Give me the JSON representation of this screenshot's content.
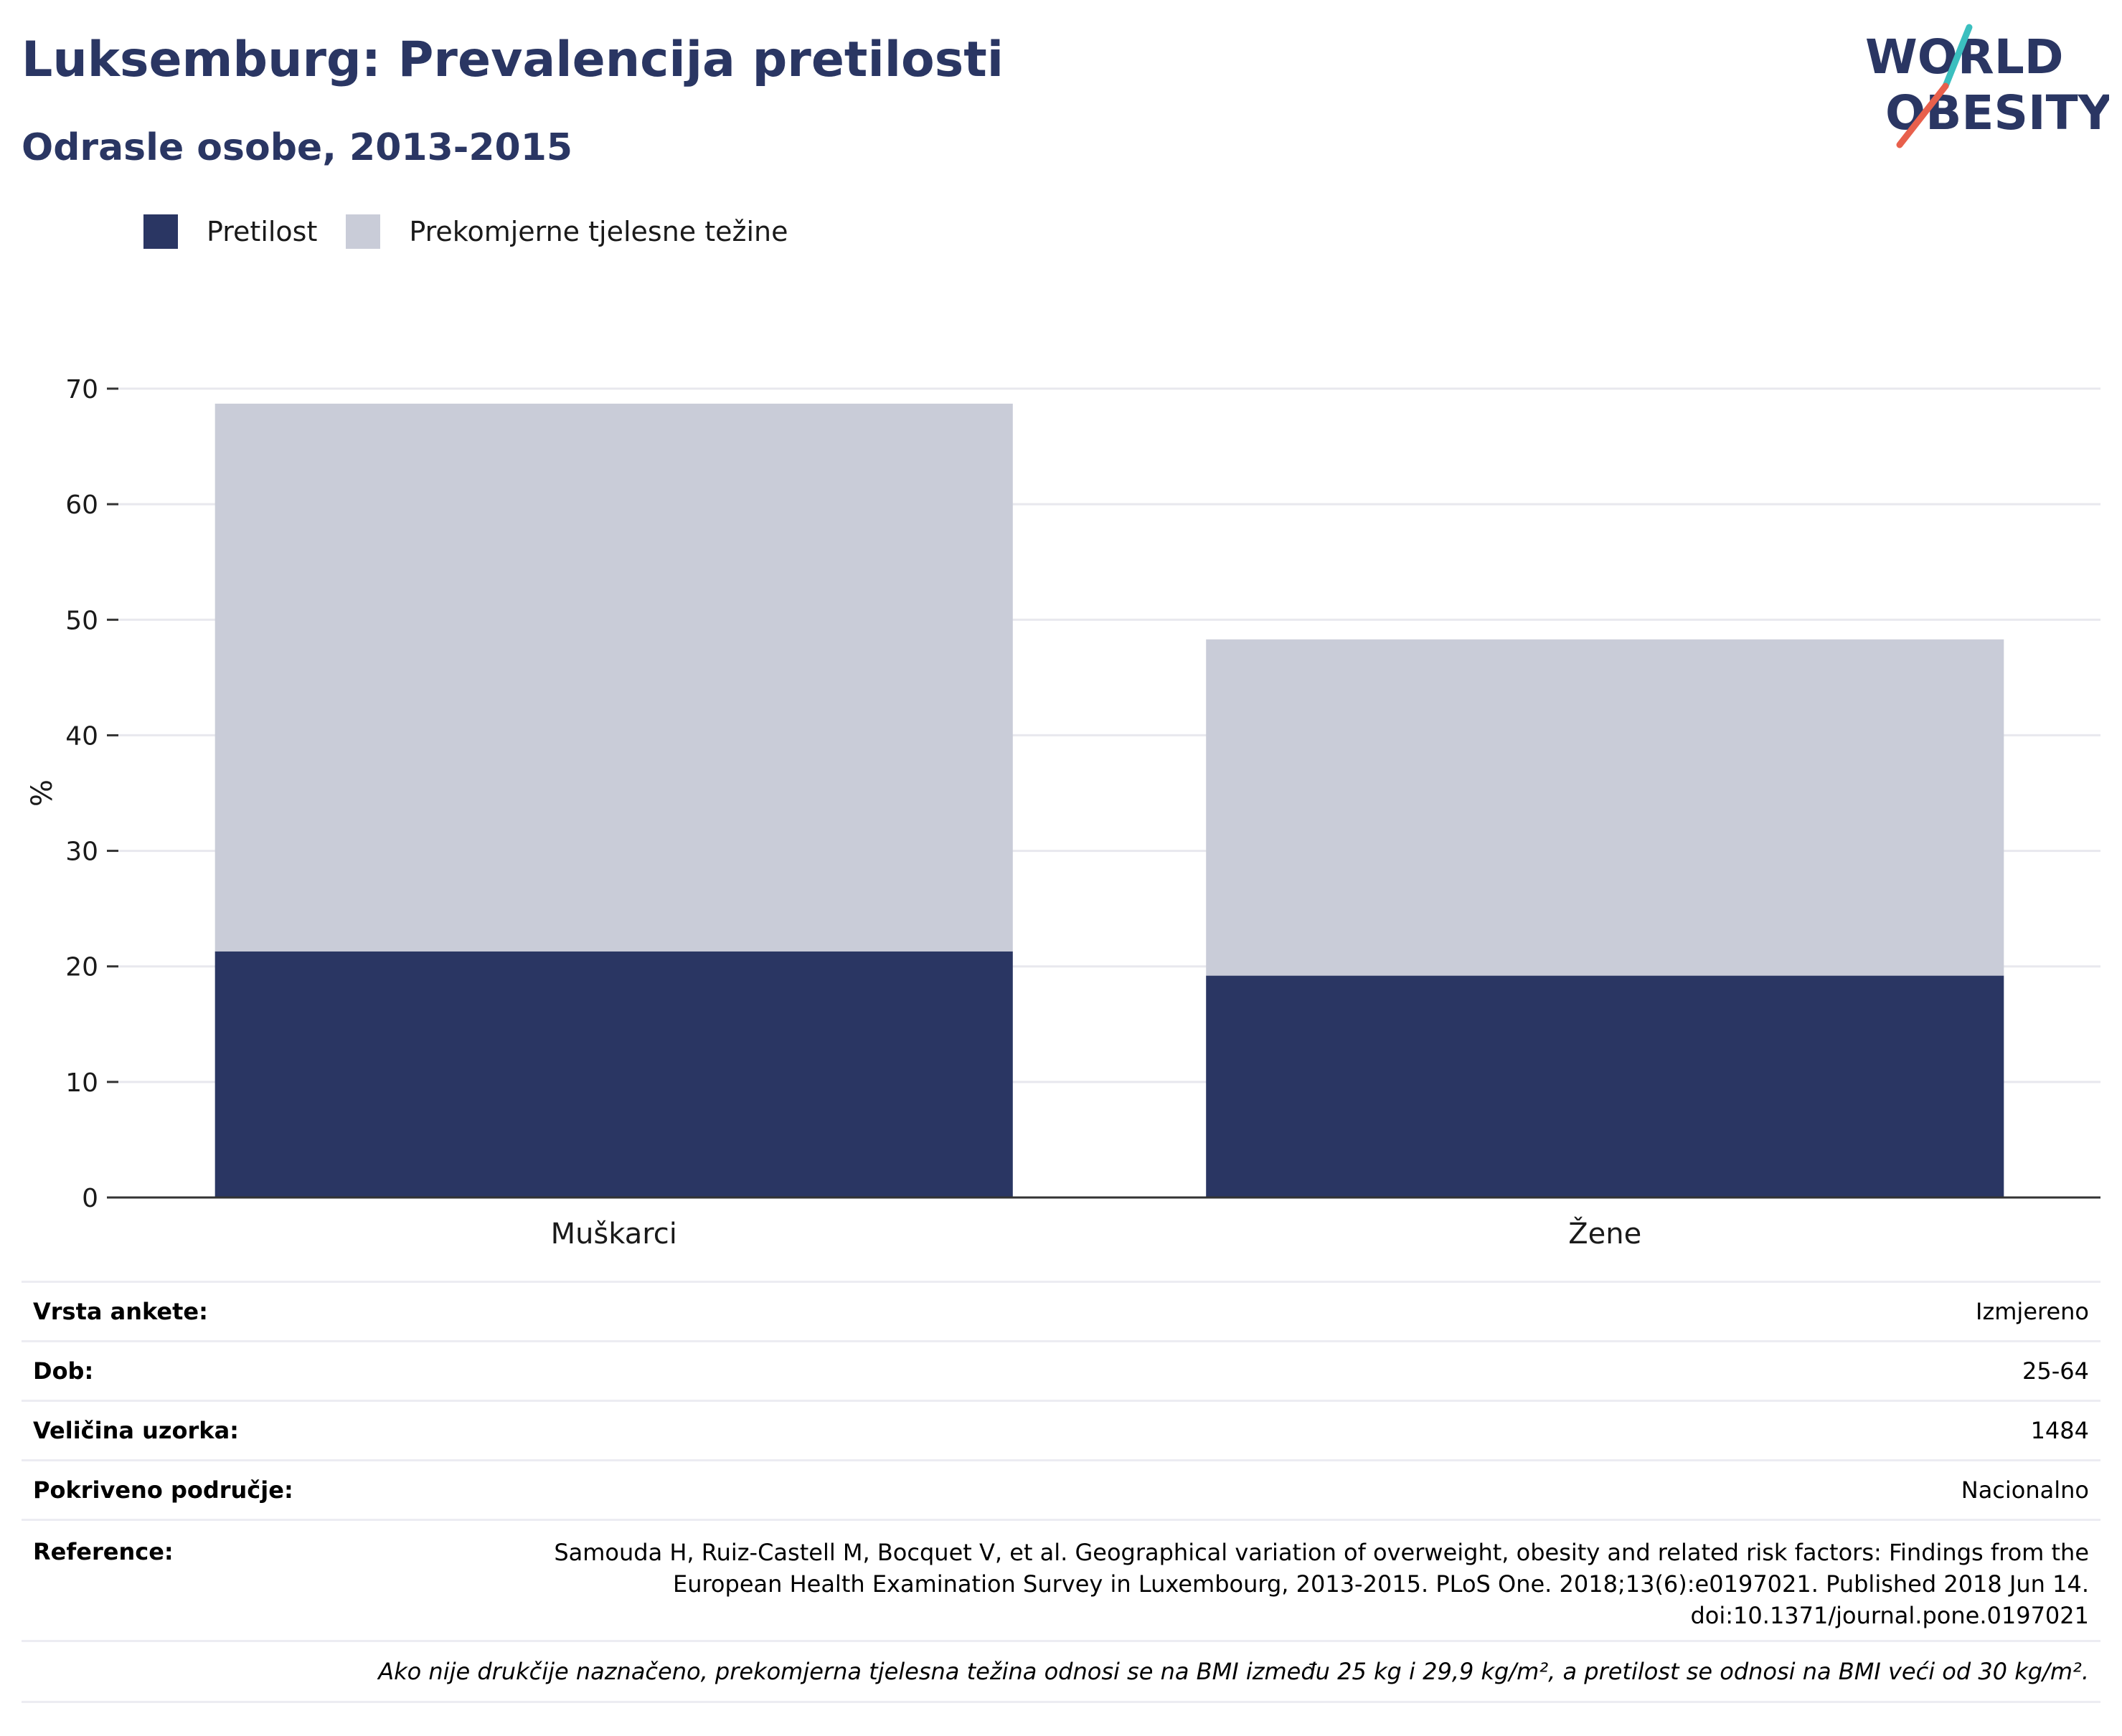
{
  "header": {
    "title": "Luksemburg: Prevalencija pretilosti",
    "subtitle": "Odrasle osobe, 2013-2015"
  },
  "logo": {
    "line1": "WORLD",
    "line2": "OBESITY",
    "slash_colors": [
      "#3bbfbf",
      "#e8604c"
    ]
  },
  "chart_data": {
    "type": "bar",
    "stacked": true,
    "categories": [
      "Muškarci",
      "Žene"
    ],
    "series": [
      {
        "name": "Pretilost",
        "color": "#2a3663",
        "values": [
          21.3,
          19.2
        ]
      },
      {
        "name": "Prekomjerne tjelesne težine",
        "color": "#c9ccd8",
        "values": [
          47.4,
          29.1
        ]
      }
    ],
    "ylabel": "%",
    "ylim": [
      0,
      70
    ],
    "yticks": [
      0,
      10,
      20,
      30,
      40,
      50,
      60,
      70
    ],
    "grid": true,
    "legend_position": "top-left"
  },
  "info": {
    "rows": [
      {
        "label": "Vrsta ankete:",
        "value": "Izmjereno"
      },
      {
        "label": "Dob:",
        "value": "25-64"
      },
      {
        "label": "Veličina uzorka:",
        "value": "1484"
      },
      {
        "label": "Pokriveno područje:",
        "value": "Nacionalno"
      }
    ],
    "reference": {
      "label": "Reference:",
      "lines": [
        "Samouda H, Ruiz-Castell M, Bocquet V, et al. Geographical variation of overweight, obesity and related risk factors: Findings from the",
        "European Health Examination Survey in Luxembourg, 2013-2015. PLoS One. 2018;13(6):e0197021. Published 2018 Jun 14.",
        "doi:10.1371/journal.pone.0197021"
      ]
    },
    "note": "Ako nije drukčije naznačeno, prekomjerna tjelesna težina odnosi se na BMI između 25 kg i 29,9 kg/m², a pretilost se odnosi na BMI veći od 30 kg/m²."
  }
}
